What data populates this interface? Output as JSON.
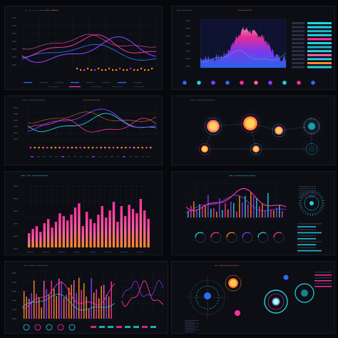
{
  "colors": {
    "bg": "#07080c",
    "panel": "#0c0e14",
    "grid": "#1c2030",
    "cyan": "#22d3e6",
    "magenta": "#ff2fa0",
    "orange": "#ff8a24",
    "purple": "#8a3cff",
    "pink": "#ff5fa2",
    "blue": "#2b6cff"
  },
  "panels": [
    {
      "id": "p1",
      "title": "→ → → →  •••••• ~~~",
      "accent": "•• ••••"
    },
    {
      "id": "p2",
      "title": "••• •••••",
      "accent": "••••••••"
    },
    {
      "id": "p3",
      "title": "••• •••••••••",
      "accent": "•••••••••"
    },
    {
      "id": "p4",
      "title": "••• ••••••••••",
      "accent": ""
    },
    {
      "id": "p5",
      "title": "••• •• •••••••••",
      "accent": ""
    },
    {
      "id": "p6",
      "title": "••• •••••••••••",
      "accent": ""
    },
    {
      "id": "p7",
      "title": "•• •••• ••••••",
      "accent": ""
    },
    {
      "id": "p8",
      "title": "•• •••••••••••",
      "accent": ""
    }
  ]
}
